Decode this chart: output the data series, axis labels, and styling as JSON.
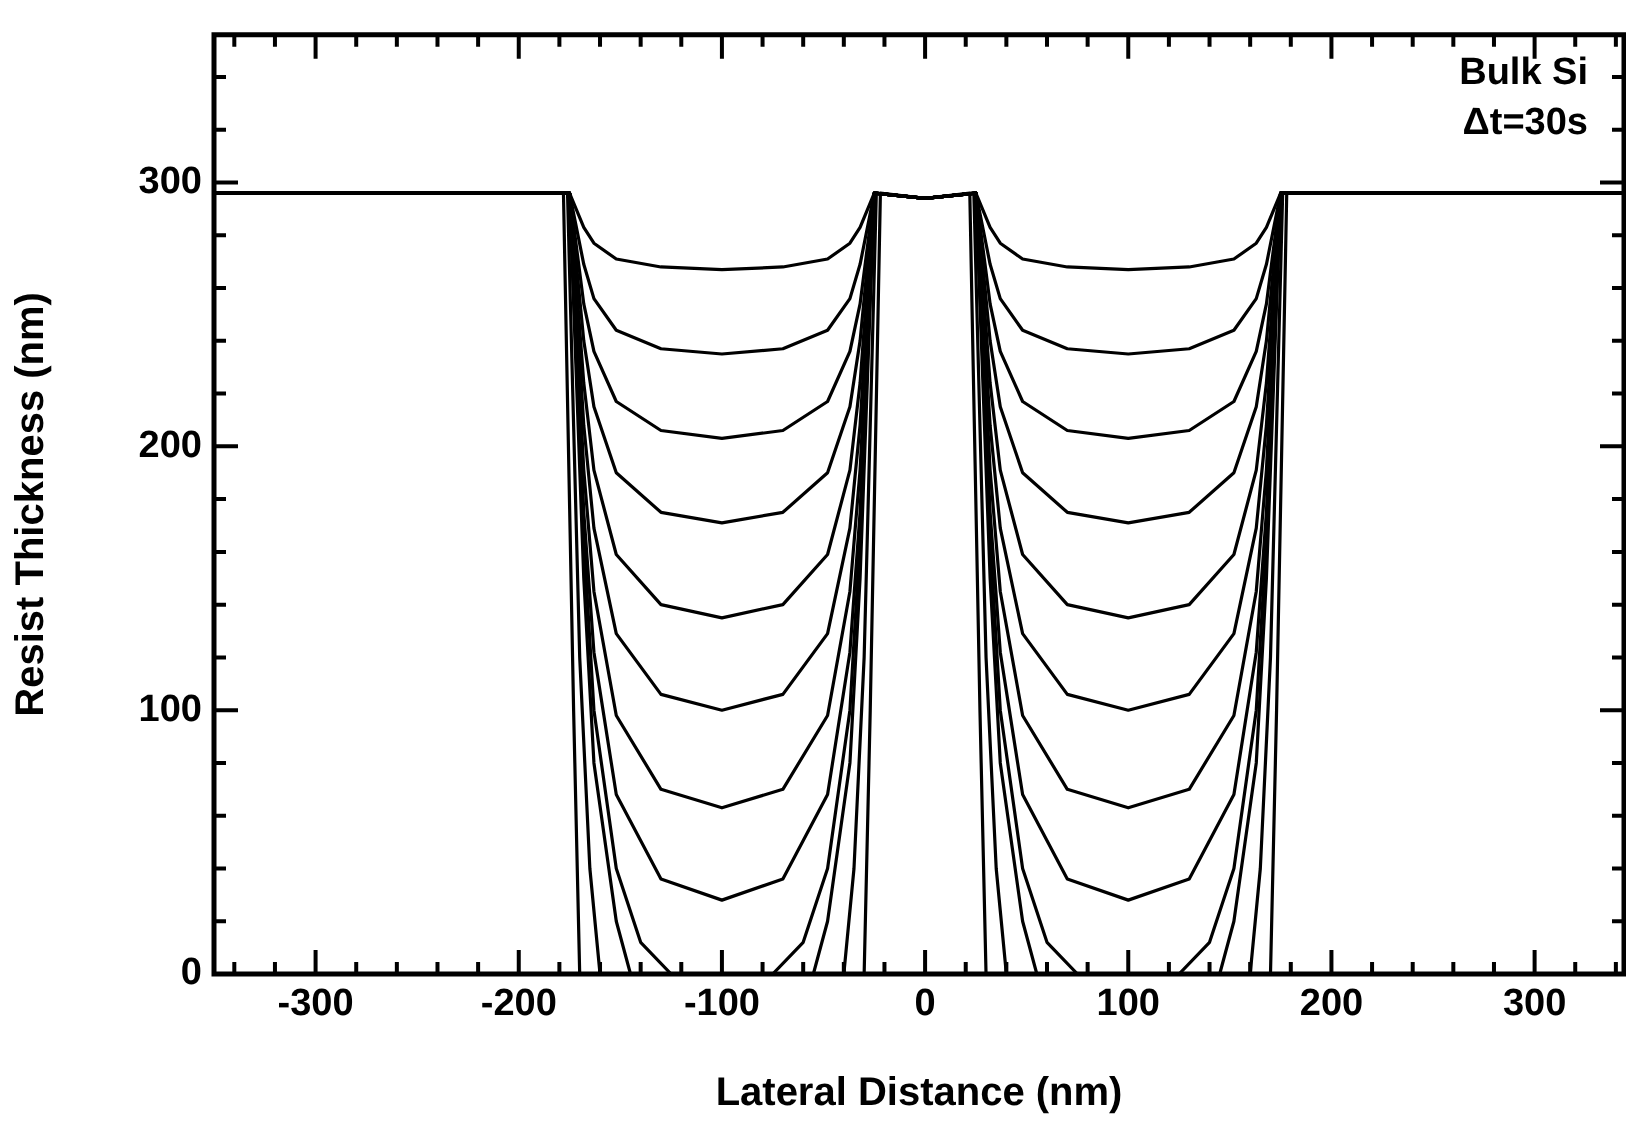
{
  "chart_data": {
    "type": "line",
    "xlabel": "Lateral Distance (nm)",
    "ylabel": "Resist Thickness (nm)",
    "annotations": [
      "Bulk Si",
      "Δt=30s"
    ],
    "xlim": [
      -350,
      344
    ],
    "ylim": [
      0,
      356
    ],
    "xticks": [
      {
        "value": -340,
        "label": null
      },
      {
        "value": -320,
        "label": null
      },
      -300,
      {
        "value": -280,
        "label": null
      },
      {
        "value": -260,
        "label": null
      },
      {
        "value": -240,
        "label": null
      },
      {
        "value": -220,
        "label": null
      },
      -200,
      {
        "value": -180,
        "label": null
      },
      {
        "value": -160,
        "label": null
      },
      {
        "value": -140,
        "label": null
      },
      {
        "value": -120,
        "label": null
      },
      -100,
      {
        "value": -80,
        "label": null
      },
      {
        "value": -60,
        "label": null
      },
      {
        "value": -40,
        "label": null
      },
      {
        "value": -20,
        "label": null
      },
      0,
      {
        "value": 20,
        "label": null
      },
      {
        "value": 40,
        "label": null
      },
      {
        "value": 60,
        "label": null
      },
      {
        "value": 80,
        "label": null
      },
      100,
      {
        "value": 120,
        "label": null
      },
      {
        "value": 140,
        "label": null
      },
      {
        "value": 160,
        "label": null
      },
      {
        "value": 180,
        "label": null
      },
      200,
      {
        "value": 220,
        "label": null
      },
      {
        "value": 240,
        "label": null
      },
      {
        "value": 260,
        "label": null
      },
      {
        "value": 280,
        "label": null
      },
      300,
      {
        "value": 320,
        "label": null
      },
      {
        "value": 340,
        "label": null
      }
    ],
    "yticks": [
      0,
      {
        "value": 20,
        "label": null
      },
      {
        "value": 40,
        "label": null
      },
      {
        "value": 60,
        "label": null
      },
      {
        "value": 80,
        "label": null
      },
      100,
      {
        "value": 120,
        "label": null
      },
      {
        "value": 140,
        "label": null
      },
      {
        "value": 160,
        "label": null
      },
      {
        "value": 180,
        "label": null
      },
      200,
      {
        "value": 220,
        "label": null
      },
      {
        "value": 240,
        "label": null
      },
      {
        "value": 260,
        "label": null
      },
      {
        "value": 280,
        "label": null
      },
      300,
      {
        "value": 320,
        "label": null
      },
      {
        "value": 340,
        "label": null
      }
    ],
    "grid": false,
    "legend": false,
    "marker": "none",
    "line_style": "solid",
    "series": [
      {
        "color": "#000000",
        "x": [
          -350,
          -185,
          -175,
          -168,
          -163,
          -152,
          -130,
          -100,
          -70,
          -48,
          -37,
          -32,
          -25,
          0,
          25,
          32,
          37,
          48,
          70,
          100,
          130,
          152,
          163,
          168,
          175,
          185,
          344
        ],
        "values": [
          296,
          296,
          296,
          283,
          277,
          271,
          268,
          267,
          268,
          271,
          277,
          283,
          296,
          294,
          296,
          283,
          277,
          271,
          268,
          267,
          268,
          271,
          277,
          283,
          296,
          296,
          296
        ]
      },
      {
        "color": "#000000",
        "x": [
          -350,
          -185,
          -175,
          -168,
          -163,
          -152,
          -130,
          -100,
          -70,
          -48,
          -37,
          -32,
          -25,
          0,
          25,
          32,
          37,
          48,
          70,
          100,
          130,
          152,
          163,
          168,
          175,
          185,
          344
        ],
        "values": [
          296,
          296,
          296,
          269,
          256,
          244,
          237,
          235,
          237,
          244,
          256,
          269,
          296,
          294,
          296,
          269,
          256,
          244,
          237,
          235,
          237,
          244,
          256,
          269,
          296,
          296,
          296
        ]
      },
      {
        "color": "#000000",
        "x": [
          -350,
          -185,
          -175,
          -168,
          -163,
          -152,
          -130,
          -100,
          -70,
          -48,
          -37,
          -32,
          -25,
          0,
          25,
          32,
          37,
          48,
          70,
          100,
          130,
          152,
          163,
          168,
          175,
          185,
          344
        ],
        "values": [
          296,
          296,
          296,
          254,
          236,
          217,
          206,
          203,
          206,
          217,
          236,
          254,
          296,
          294,
          296,
          254,
          236,
          217,
          206,
          203,
          206,
          217,
          236,
          254,
          296,
          296,
          296
        ]
      },
      {
        "color": "#000000",
        "x": [
          -350,
          -185,
          -175,
          -168,
          -163,
          -152,
          -130,
          -100,
          -70,
          -48,
          -37,
          -32,
          -25,
          0,
          25,
          32,
          37,
          48,
          70,
          100,
          130,
          152,
          163,
          168,
          175,
          185,
          344
        ],
        "values": [
          296,
          296,
          296,
          240,
          215,
          190,
          175,
          171,
          175,
          190,
          215,
          240,
          296,
          294,
          296,
          240,
          215,
          190,
          175,
          171,
          175,
          190,
          215,
          240,
          296,
          296,
          296
        ]
      },
      {
        "color": "#000000",
        "x": [
          -350,
          -185,
          -175,
          -168,
          -163,
          -152,
          -130,
          -100,
          -70,
          -48,
          -37,
          -32,
          -25,
          0,
          25,
          32,
          37,
          48,
          70,
          100,
          130,
          152,
          163,
          168,
          175,
          185,
          344
        ],
        "values": [
          296,
          296,
          296,
          224,
          191,
          159,
          140,
          135,
          140,
          159,
          191,
          224,
          296,
          294,
          296,
          224,
          191,
          159,
          140,
          135,
          140,
          159,
          191,
          224,
          296,
          296,
          296
        ]
      },
      {
        "color": "#000000",
        "x": [
          -350,
          -185,
          -175,
          -168,
          -163,
          -152,
          -130,
          -100,
          -70,
          -48,
          -37,
          -32,
          -25,
          0,
          25,
          32,
          37,
          48,
          70,
          100,
          130,
          152,
          163,
          168,
          175,
          185,
          344
        ],
        "values": [
          296,
          296,
          296,
          208,
          169,
          129,
          106,
          100,
          106,
          129,
          169,
          208,
          296,
          294,
          296,
          208,
          169,
          129,
          106,
          100,
          106,
          129,
          169,
          208,
          296,
          296,
          296
        ]
      },
      {
        "color": "#000000",
        "x": [
          -350,
          -185,
          -175,
          -168,
          -163,
          -152,
          -130,
          -100,
          -70,
          -48,
          -37,
          -32,
          -25,
          0,
          25,
          32,
          37,
          48,
          70,
          100,
          130,
          152,
          163,
          168,
          175,
          185,
          344
        ],
        "values": [
          296,
          296,
          296,
          191,
          145,
          98,
          70,
          63,
          70,
          98,
          145,
          191,
          296,
          294,
          296,
          191,
          145,
          98,
          70,
          63,
          70,
          98,
          145,
          191,
          296,
          296,
          296
        ]
      },
      {
        "color": "#000000",
        "x": [
          -350,
          -185,
          -175,
          -168,
          -163,
          -152,
          -130,
          -100,
          -70,
          -48,
          -37,
          -32,
          -25,
          0,
          25,
          32,
          37,
          48,
          70,
          100,
          130,
          152,
          163,
          168,
          175,
          185,
          344
        ],
        "values": [
          296,
          296,
          296,
          175,
          122,
          68,
          36,
          28,
          36,
          68,
          122,
          175,
          296,
          294,
          296,
          175,
          122,
          68,
          36,
          28,
          36,
          68,
          122,
          175,
          296,
          296,
          296
        ]
      },
      {
        "color": "#000000",
        "x": [
          -350,
          -185,
          -175,
          -168,
          -163,
          -152,
          -140,
          -125
        ],
        "values": [
          296,
          296,
          296,
          165,
          100,
          40,
          12,
          0
        ]
      },
      {
        "color": "#000000",
        "x": [
          -75,
          -60,
          -48,
          -37,
          -32,
          -25,
          0,
          25,
          32,
          37,
          48,
          60,
          75
        ],
        "values": [
          0,
          12,
          40,
          100,
          165,
          296,
          294,
          296,
          165,
          100,
          40,
          12,
          0
        ]
      },
      {
        "color": "#000000",
        "x": [
          125,
          140,
          152,
          163,
          168,
          175,
          185,
          344
        ],
        "values": [
          0,
          12,
          40,
          100,
          165,
          296,
          296,
          296
        ]
      },
      {
        "color": "#000000",
        "x": [
          -350,
          -185,
          -175,
          -168,
          -163,
          -152,
          -145
        ],
        "values": [
          296,
          296,
          296,
          150,
          80,
          20,
          0
        ]
      },
      {
        "color": "#000000",
        "x": [
          -55,
          -48,
          -37,
          -32,
          -25,
          0,
          25,
          32,
          37,
          48,
          55
        ],
        "values": [
          0,
          20,
          80,
          150,
          296,
          294,
          296,
          150,
          80,
          20,
          0
        ]
      },
      {
        "color": "#000000",
        "x": [
          145,
          152,
          163,
          168,
          175,
          185,
          344
        ],
        "values": [
          0,
          20,
          80,
          150,
          296,
          296,
          296
        ]
      },
      {
        "color": "#000000",
        "x": [
          -350,
          -186,
          -176,
          -170,
          -165,
          -160
        ],
        "values": [
          296,
          296,
          296,
          120,
          40,
          0
        ]
      },
      {
        "color": "#000000",
        "x": [
          -40,
          -35,
          -30,
          -24,
          0,
          24,
          30,
          35,
          40
        ],
        "values": [
          0,
          40,
          120,
          296,
          294,
          296,
          120,
          40,
          0
        ]
      },
      {
        "color": "#000000",
        "x": [
          160,
          165,
          170,
          176,
          186,
          344
        ],
        "values": [
          0,
          40,
          120,
          296,
          296,
          296
        ]
      },
      {
        "color": "#000000",
        "x": [
          -350,
          -188,
          -178,
          -173,
          -170
        ],
        "values": [
          296,
          296,
          296,
          100,
          0
        ]
      },
      {
        "color": "#000000",
        "x": [
          -30,
          -27,
          -22,
          0,
          22,
          27,
          30
        ],
        "values": [
          0,
          100,
          296,
          294,
          296,
          100,
          0
        ]
      },
      {
        "color": "#000000",
        "x": [
          170,
          173,
          178,
          188,
          344
        ],
        "values": [
          0,
          100,
          296,
          296,
          296
        ]
      }
    ]
  }
}
